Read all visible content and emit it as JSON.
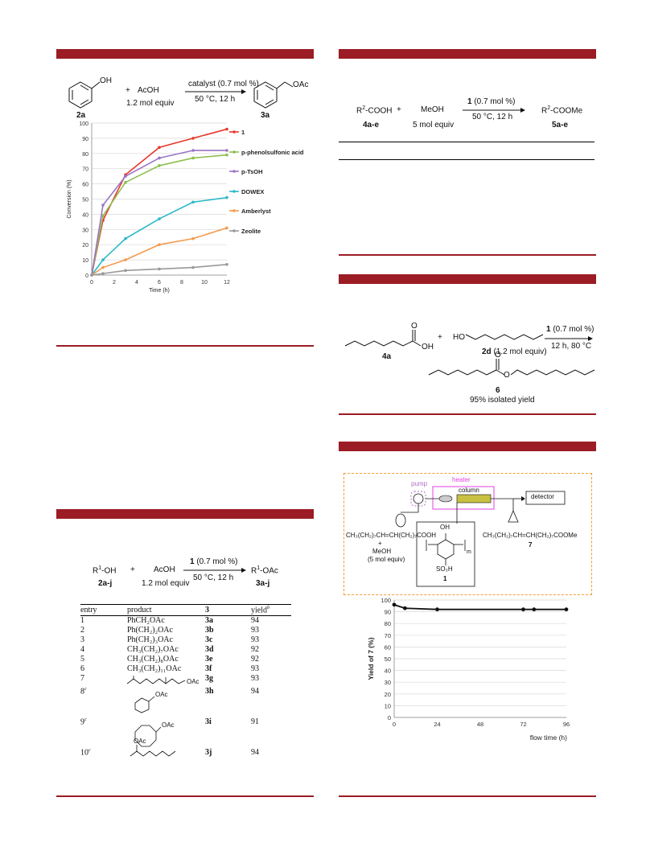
{
  "rxn1": {
    "oh": "OH",
    "plus": "+",
    "reagent": "AcOH",
    "conditions_top": "catalyst (0.7 mol %)",
    "conditions_bottom": "50 °C, 12 h",
    "equiv": "1.2 mol equiv",
    "oac": "OAc",
    "sm_label": "2a",
    "prod_label": "3a"
  },
  "chart_data": [
    {
      "type": "line",
      "xlabel": "Time (h)",
      "ylabel": "Conversion (%)",
      "xlim": [
        0,
        12
      ],
      "ylim": [
        0,
        100
      ],
      "xticks": [
        "0",
        "2",
        "4",
        "6",
        "8",
        "10",
        "12"
      ],
      "yticks": [
        "0",
        "10",
        "20",
        "30",
        "40",
        "50",
        "60",
        "70",
        "80",
        "90",
        "100"
      ],
      "grid": "horizontal",
      "legend": "right",
      "x": [
        0,
        1,
        3,
        6,
        9,
        12
      ],
      "series": [
        {
          "name": "1",
          "color": "#e8372c",
          "values": [
            0,
            36,
            66,
            84,
            90,
            96
          ]
        },
        {
          "name": "p-phenolsulfonic acid",
          "color": "#8dbf4e",
          "values": [
            0,
            39,
            61,
            72,
            77,
            79
          ]
        },
        {
          "name": "p-TsOH",
          "color": "#9a75c4",
          "values": [
            0,
            46,
            65,
            77,
            82,
            82
          ]
        },
        {
          "name": "DOWEX",
          "color": "#2bb8c8",
          "values": [
            0,
            10,
            24,
            37,
            48,
            51
          ]
        },
        {
          "name": "Amberlyst",
          "color": "#f59a4c",
          "values": [
            0,
            5,
            10,
            20,
            24,
            31
          ]
        },
        {
          "name": "Zeolite",
          "color": "#999999",
          "values": [
            0,
            1,
            3,
            4,
            5,
            7
          ]
        }
      ]
    },
    {
      "type": "line",
      "xlabel": "flow time (h)",
      "ylabel": "Yield of 7 (%)",
      "xlim": [
        0,
        96
      ],
      "ylim": [
        0,
        100
      ],
      "xticks": [
        "0",
        "24",
        "48",
        "72",
        "96"
      ],
      "yticks": [
        "0",
        "10",
        "20",
        "30",
        "40",
        "50",
        "60",
        "70",
        "80",
        "90",
        "100"
      ],
      "grid": "horizontal",
      "x": [
        0,
        6,
        24,
        72,
        78,
        96
      ],
      "series": [
        {
          "color": "#111111",
          "values": [
            96,
            93,
            92,
            92,
            92,
            92
          ]
        }
      ]
    }
  ],
  "rxn2": {
    "r1oh": "R",
    "r1sup": "1",
    "r1oh_tail": "-OH",
    "plus": "+",
    "reagent": "AcOH",
    "cat": "1",
    "cat_tail": " (0.7 mol %)",
    "cond": "50 °C, 12 h",
    "prod": "R",
    "prod_sup": "1",
    "prod_tail": "-OAc",
    "sm_label": "2a-j",
    "equiv": "1.2 mol equiv",
    "prod_label": "3a-j"
  },
  "table": {
    "headers": {
      "entry": "entry",
      "product": "product",
      "num": "3",
      "yield": "yield",
      "yield_sup": "b"
    },
    "rows": [
      {
        "entry": "1",
        "product": "PhCH₂OAc",
        "code": "3a",
        "yield": "94"
      },
      {
        "entry": "2",
        "product": "Ph(CH₂)₂OAc",
        "code": "3b",
        "yield": "93"
      },
      {
        "entry": "3",
        "product": "Ph(CH₂)₃OAc",
        "code": "3c",
        "yield": "93"
      },
      {
        "entry": "4",
        "product": "CH₃(CH₂)₇OAc",
        "code": "3d",
        "yield": "92"
      },
      {
        "entry": "5",
        "product": "CH₃(CH₂)₈OAc",
        "code": "3e",
        "yield": "92"
      },
      {
        "entry": "6",
        "product": "CH₃(CH₂)₁₁OAc",
        "code": "3f",
        "yield": "93"
      },
      {
        "entry": "7",
        "product": "",
        "code": "3g",
        "yield": "93"
      },
      {
        "entry": "8",
        "sup": "c",
        "product": "",
        "code": "3h",
        "yield": "94"
      },
      {
        "entry": "9",
        "sup": "c",
        "product": "",
        "code": "3i",
        "yield": "91"
      },
      {
        "entry": "10",
        "sup": "c",
        "product": "",
        "code": "3j",
        "yield": "94"
      }
    ],
    "oac": "OAc"
  },
  "rxn3": {
    "sm": "R",
    "sm_sup": "2",
    "sm_tail": "-COOH",
    "plus": "+",
    "reagent": "MeOH",
    "cat": "1",
    "cat_tail": " (0.7 mol %)",
    "cond": "50 °C, 12 h",
    "prod": "R",
    "prod_sup": "2",
    "prod_tail": "-COOMe",
    "sm_label": "4a-e",
    "equiv": "5 mol equiv",
    "prod_label": "5a-e"
  },
  "rxn4": {
    "o": "O",
    "oh": "OH",
    "plus": "+",
    "ho": "HO",
    "sm_label": "4a",
    "alc_label": "2d",
    "alc_equiv": " (1.2 mol equiv)",
    "cat": "1",
    "cat_tail": " (0.7 mol %)",
    "cond": "12 h, 80 °C",
    "prod_label": "6",
    "prod_yield": "95% isolated yield"
  },
  "flow": {
    "pump": "pump",
    "heater": "heater",
    "column": "column",
    "detector": "detector",
    "feed": "CH₃(CH₂)₇CH=CH(CH₂)₇COOH",
    "feed_plus": "+",
    "feed2": "MeOH",
    "feed3": "(5 mol equiv)",
    "oh": "OH",
    "so3h": "SO₃H",
    "n": "m",
    "cat_label": "1",
    "product": "CH₃(CH₂)₇CH=CH(CH₂)₇COOMe",
    "product_label": "7"
  }
}
